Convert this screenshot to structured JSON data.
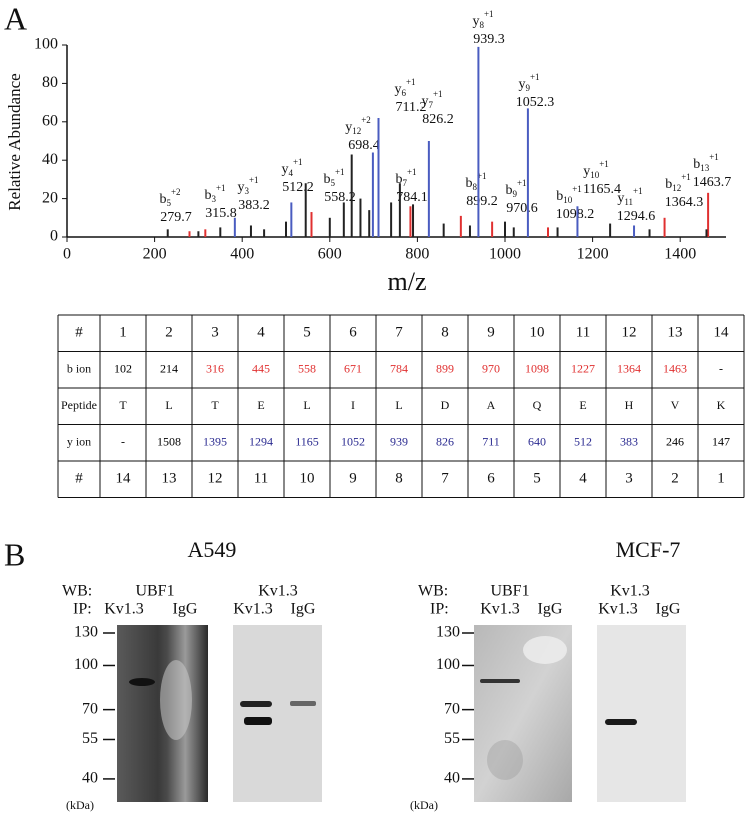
{
  "panel_labels": [
    "A",
    "B"
  ],
  "chart_data": {
    "type": "stem",
    "x_label": "m/z",
    "y_label": "Relative Abundance",
    "xlim": [
      0,
      1500
    ],
    "xticks": [
      0,
      200,
      400,
      600,
      800,
      1000,
      1200,
      1400
    ],
    "ylim": [
      0,
      100
    ],
    "yticks": [
      0,
      20,
      40,
      60,
      80,
      100
    ],
    "x": [
      279.7,
      315.8,
      383.2,
      512.2,
      558.2,
      698.4,
      711.2,
      784.1,
      826.2,
      899.2,
      939.3,
      970.6,
      1052.3,
      1098.2,
      1165.4,
      1294.6,
      1364.3,
      1463.7,
      230,
      300,
      350,
      420,
      450,
      500,
      545,
      600,
      632,
      650,
      670,
      690,
      740,
      760,
      790,
      860,
      920,
      1000,
      1020,
      1120,
      1240,
      1330,
      1460
    ],
    "values": [
      3,
      4,
      10,
      18,
      13,
      44,
      62,
      16,
      50,
      11,
      99,
      8,
      67,
      5,
      16,
      6,
      10,
      23,
      4,
      3,
      5,
      6,
      4,
      8,
      28,
      10,
      18,
      43,
      20,
      14,
      18,
      28,
      17,
      7,
      6,
      8,
      5,
      5,
      7,
      4,
      4
    ],
    "colors": [
      "#e03030",
      "#e03030",
      "#4a5cc0",
      "#4a5cc0",
      "#e03030",
      "#4a5cc0",
      "#4a5cc0",
      "#e03030",
      "#4a5cc0",
      "#e03030",
      "#4a5cc0",
      "#e03030",
      "#4a5cc0",
      "#e03030",
      "#4a5cc0",
      "#4a5cc0",
      "#e03030",
      "#e03030",
      "#222222",
      "#222222",
      "#222222",
      "#222222",
      "#222222",
      "#222222",
      "#222222",
      "#222222",
      "#222222",
      "#222222",
      "#222222",
      "#222222",
      "#222222",
      "#222222",
      "#222222",
      "#222222",
      "#222222",
      "#222222",
      "#222222",
      "#222222",
      "#222222",
      "#222222",
      "#222222"
    ],
    "ion_labels": [
      {
        "ion": "b",
        "index": "5",
        "charge": "+2"
      },
      {
        "ion": "b",
        "index": "3",
        "charge": "+1"
      },
      {
        "ion": "y",
        "index": "3",
        "charge": "+1"
      },
      {
        "ion": "y",
        "index": "4",
        "charge": "+1"
      },
      {
        "ion": "b",
        "index": "5",
        "charge": "+1"
      },
      {
        "ion": "y",
        "index": "12",
        "charge": "+2"
      },
      {
        "ion": "y",
        "index": "6",
        "charge": "+1"
      },
      {
        "ion": "b",
        "index": "7",
        "charge": "+1"
      },
      {
        "ion": "y",
        "index": "7",
        "charge": "+1"
      },
      {
        "ion": "b",
        "index": "8",
        "charge": "+1"
      },
      {
        "ion": "y",
        "index": "8",
        "charge": "+1"
      },
      {
        "ion": "b",
        "index": "9",
        "charge": "+1"
      },
      {
        "ion": "y",
        "index": "9",
        "charge": "+1"
      },
      {
        "ion": "b",
        "index": "10",
        "charge": "+1"
      },
      {
        "ion": "y",
        "index": "10",
        "charge": "+1"
      },
      {
        "ion": "y",
        "index": "11",
        "charge": "+1"
      },
      {
        "ion": "b",
        "index": "12",
        "charge": "+1"
      },
      {
        "ion": "b",
        "index": "13",
        "charge": "+1"
      },
      null,
      null,
      null,
      null,
      null,
      null,
      null,
      null,
      null,
      null,
      null,
      null,
      null,
      null,
      null,
      null,
      null,
      null,
      null,
      null,
      null,
      null,
      null
    ]
  },
  "table": {
    "rows": [
      {
        "label": "#",
        "cells": [
          1,
          2,
          3,
          4,
          5,
          6,
          7,
          8,
          9,
          10,
          11,
          12,
          13,
          14
        ]
      },
      {
        "label": "b ion",
        "cells": [
          102,
          214,
          316,
          445,
          558,
          671,
          784,
          899,
          970,
          1098,
          1227,
          1364,
          1463,
          "-"
        ],
        "colors": [
          "#000000",
          "#000000",
          "#e03030",
          "#e03030",
          "#e03030",
          "#e03030",
          "#e03030",
          "#e03030",
          "#e03030",
          "#e03030",
          "#e03030",
          "#e03030",
          "#e03030",
          "#000000"
        ]
      },
      {
        "label": "Peptide",
        "cells": [
          "T",
          "L",
          "T",
          "E",
          "L",
          "I",
          "L",
          "D",
          "A",
          "Q",
          "E",
          "H",
          "V",
          "K"
        ]
      },
      {
        "label": "y ion",
        "cells": [
          "-",
          1508,
          1395,
          1294,
          1165,
          1052,
          939,
          826,
          711,
          640,
          512,
          383,
          246,
          147
        ],
        "colors": [
          "#000000",
          "#000000",
          "#2a2a90",
          "#2a2a90",
          "#2a2a90",
          "#2a2a90",
          "#2a2a90",
          "#2a2a90",
          "#2a2a90",
          "#2a2a90",
          "#2a2a90",
          "#2a2a90",
          "#000000",
          "#000000"
        ]
      },
      {
        "label": "#",
        "cells": [
          14,
          13,
          12,
          11,
          10,
          9,
          8,
          7,
          6,
          5,
          4,
          3,
          2,
          1
        ]
      }
    ]
  },
  "panel_b": {
    "blots": [
      {
        "title": "A549",
        "wb_label": "WB:",
        "ip_label": "IP:",
        "lanes": [
          {
            "wb": "UBF1",
            "ip": [
              "Kv1.3",
              "IgG"
            ]
          },
          {
            "wb": "Kv1.3",
            "ip": [
              "Kv1.3",
              "IgG"
            ]
          }
        ],
        "markers": [
          130,
          100,
          70,
          55,
          40
        ],
        "marker_unit": "(kDa)"
      },
      {
        "title": "MCF-7",
        "wb_label": "WB:",
        "ip_label": "IP:",
        "lanes": [
          {
            "wb": "UBF1",
            "ip": [
              "Kv1.3",
              "IgG"
            ]
          },
          {
            "wb": "Kv1.3",
            "ip": [
              "Kv1.3",
              "IgG"
            ]
          }
        ],
        "markers": [
          130,
          100,
          70,
          55,
          40
        ],
        "marker_unit": "(kDa)"
      }
    ]
  }
}
